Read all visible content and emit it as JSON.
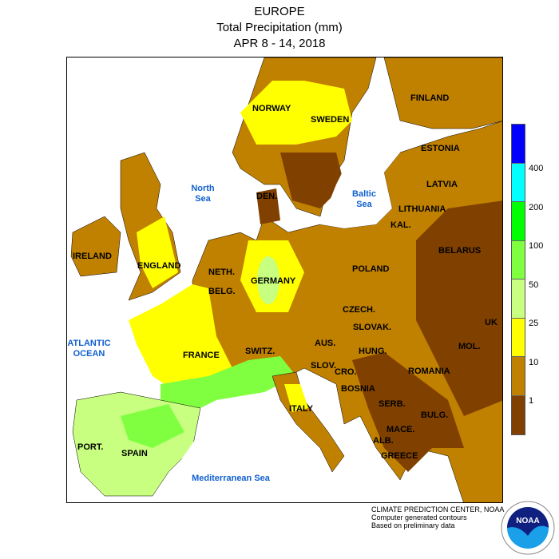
{
  "title": {
    "line1": "EUROPE",
    "line2": "Total Precipitation (mm)",
    "line3": "APR 8 - 14, 2018"
  },
  "countries": [
    "NORWAY",
    "SWEDEN",
    "FINLAND",
    "ESTONIA",
    "LATVIA",
    "LITHUANIA",
    "DEN.",
    "KAL.",
    "BELARUS",
    "IRELAND",
    "ENGLAND",
    "NETH.",
    "BELG.",
    "GERMANY",
    "POLAND",
    "CZECH.",
    "SLOVAK.",
    "UK",
    "FRANCE",
    "SWITZ.",
    "AUS.",
    "HUNG.",
    "MOL.",
    "SLOV.",
    "CRO.",
    "ROMANIA",
    "BOSNIA",
    "SERB.",
    "BULG.",
    "ITALY",
    "MACE.",
    "ALB.",
    "GREECE",
    "PORT.",
    "SPAIN"
  ],
  "seas": [
    "North Sea",
    "Baltic Sea",
    "ATLANTIC OCEAN",
    "Mediterranean Sea"
  ],
  "legend": {
    "labels": [
      "400",
      "200",
      "100",
      "50",
      "25",
      "10",
      "1"
    ],
    "colors": [
      "#0000ff",
      "#00ffff",
      "#00ff00",
      "#80ff40",
      "#c8ff80",
      "#ffff00",
      "#c08000",
      "#804000"
    ]
  },
  "footer": {
    "line1": "CLIMATE PREDICTION CENTER, NOAA",
    "line2": "Computer generated contours",
    "line3": "Based on preliminary data",
    "logo": "NOAA"
  }
}
